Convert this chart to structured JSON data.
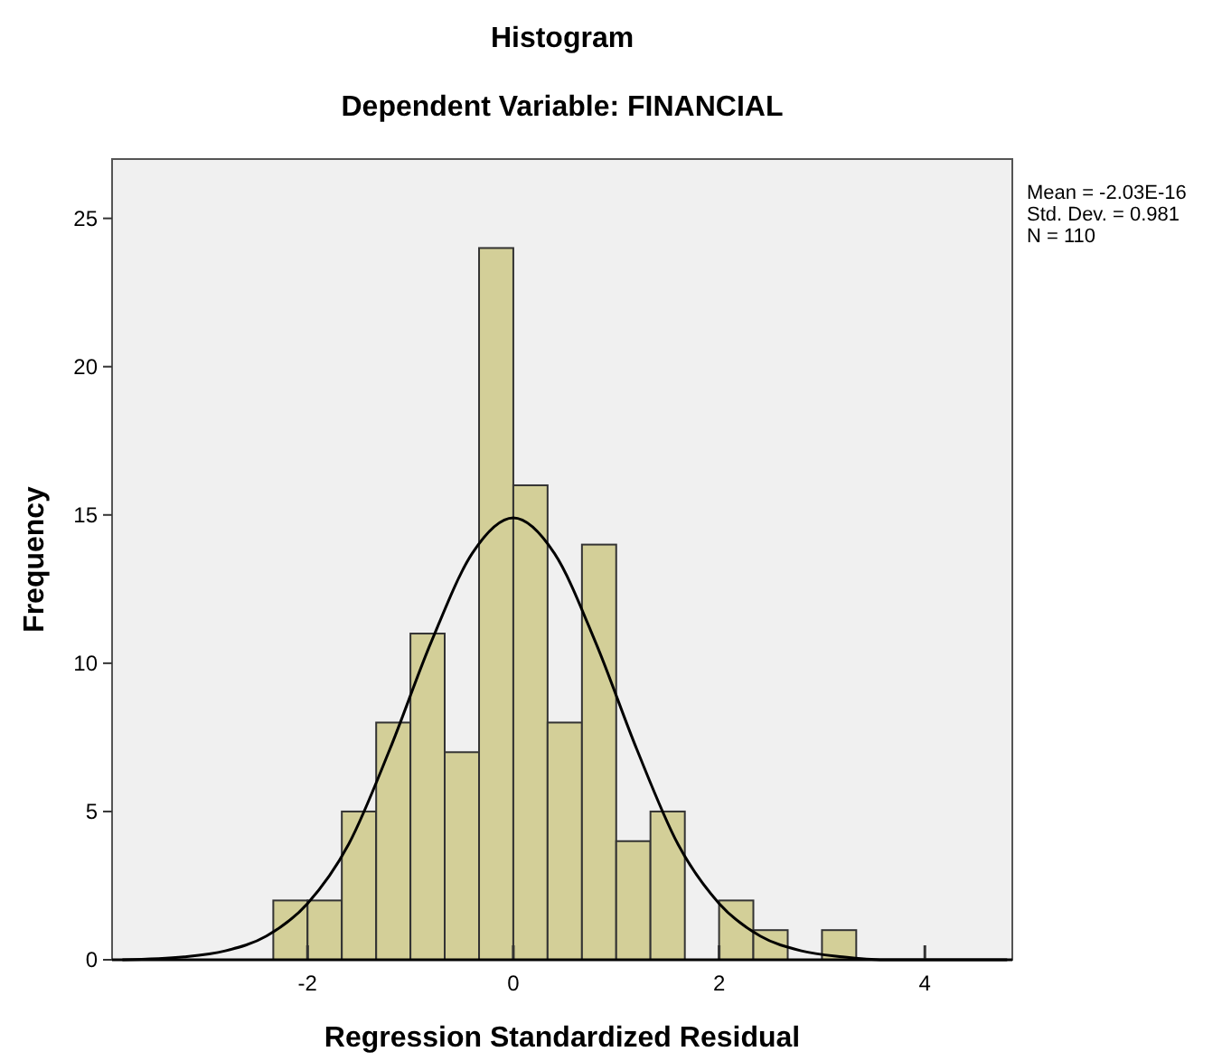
{
  "chart_data": {
    "type": "histogram",
    "title": "Histogram",
    "subtitle": "Dependent Variable: FINANCIAL",
    "xlabel": "Regression Standardized Residual",
    "ylabel": "Frequency",
    "bins": [
      -2.333,
      -2,
      -1.667,
      -1.333,
      -1,
      -0.667,
      -0.333,
      0,
      0.333,
      0.667,
      1,
      1.333,
      1.667,
      2,
      2.333,
      2.667,
      3,
      3.333
    ],
    "values": [
      2,
      2,
      5,
      8,
      11,
      7,
      24,
      16,
      8,
      14,
      4,
      5,
      0,
      2,
      1,
      0,
      1
    ],
    "color": "#d3cf98",
    "series": [
      {
        "type": "line",
        "color": "#000000",
        "x": [
          -3.8,
          -3.2,
          -2.8,
          -2.4,
          -2.0,
          -1.6,
          -1.2,
          -0.8,
          -0.4,
          0,
          0.4,
          0.8,
          1.2,
          1.6,
          2.0,
          2.4,
          2.8,
          3.2,
          3.6,
          4.0,
          4.8
        ],
        "values": [
          0,
          0.1,
          0.3,
          0.8,
          1.9,
          3.9,
          7.1,
          10.7,
          13.7,
          14.9,
          13.7,
          10.7,
          7.1,
          3.9,
          1.9,
          0.8,
          0.3,
          0.1,
          0,
          0,
          0
        ]
      }
    ],
    "xlim": [
      -3.9,
      4.85
    ],
    "ylim": [
      0,
      27
    ],
    "xticks": [
      -2,
      0,
      2,
      4
    ],
    "yticks": [
      0,
      5,
      10,
      15,
      20,
      25
    ],
    "annotations": [
      "Mean = -2.03E-16",
      "Std. Dev. = 0.981",
      "N = 110"
    ],
    "grid": false
  }
}
